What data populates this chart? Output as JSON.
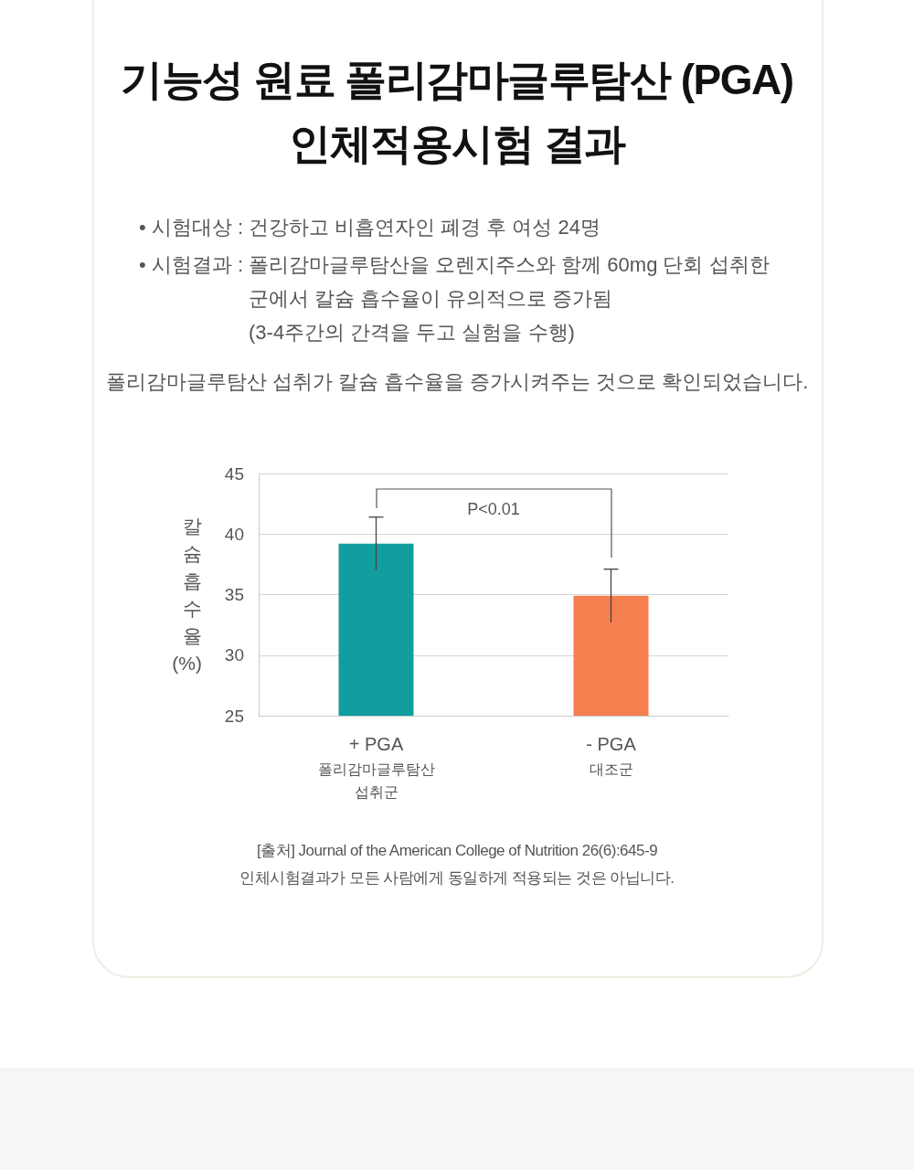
{
  "chart_data": {
    "type": "bar",
    "title": "기능성 원료 폴리감마글루탐산 (PGA)\n인체적용시험 결과",
    "categories": [
      "+ PGA\n폴리감마글루탐산\n섭취군",
      "- PGA\n대조군"
    ],
    "values": [
      39.2,
      34.9
    ],
    "errors": [
      2.2,
      2.2
    ],
    "colors": [
      "#129e9e",
      "#f57f4f"
    ],
    "ylabel": "칼슘흡수율 (%)",
    "ylim": [
      25,
      45
    ],
    "yticks": [
      25,
      30,
      35,
      40,
      45
    ],
    "grid": "y",
    "annotations": [
      "• 시험대상 : 건강하고 비흡연자인 폐경 후 여성 24명",
      "• 시험결과 : 폴리감마글루탐산을 오렌지주스와 함께 60mg 단회 섭취한 군에서 칼슘 흡수율이 유의적으로 증가됨\n(3-4주간의 간격을 두고 실험을 수행)",
      "폴리감마글루탐산 섭취가 칼슘 흡수율을 증가시켜주는 것으로 확인되었습니다.",
      "P<0.01",
      "[출처] Journal of the American College of Nutrition 26(6):645-9",
      "인체시험결과가 모든 사람에게 동일하게 적용되는 것은 아닙니다."
    ]
  }
}
